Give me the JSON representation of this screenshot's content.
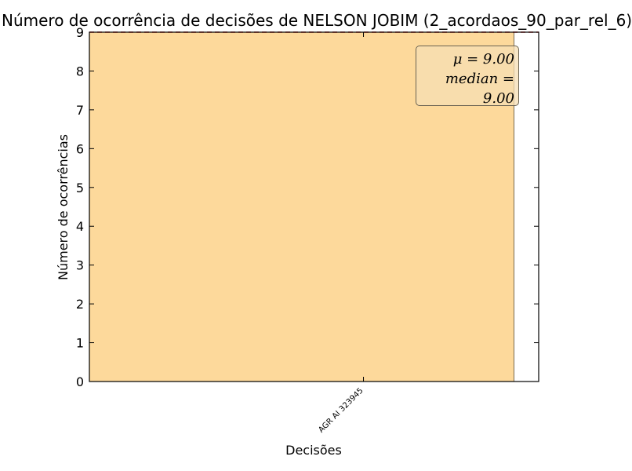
{
  "chart_data": {
    "type": "bar",
    "title": "Número de ocorrência de decisões de NELSON JOBIM (2_acordaos_90_par_rel_6)",
    "xlabel": "Decisões",
    "ylabel": "Número de ocorrências",
    "categories": [
      "AGR AI 323945"
    ],
    "values": [
      9
    ],
    "ylim": [
      0,
      9
    ],
    "yticks": [
      "0",
      "1",
      "2",
      "3",
      "4",
      "5",
      "6",
      "7",
      "8",
      "9"
    ],
    "mean_line": 9,
    "grid": false,
    "bar_color": "#fdd99b",
    "mean_line_color": "#d62728",
    "annotation": {
      "mean_text": "μ = 9.00",
      "median_text": "median = 9.00",
      "placement": "top-right"
    }
  }
}
